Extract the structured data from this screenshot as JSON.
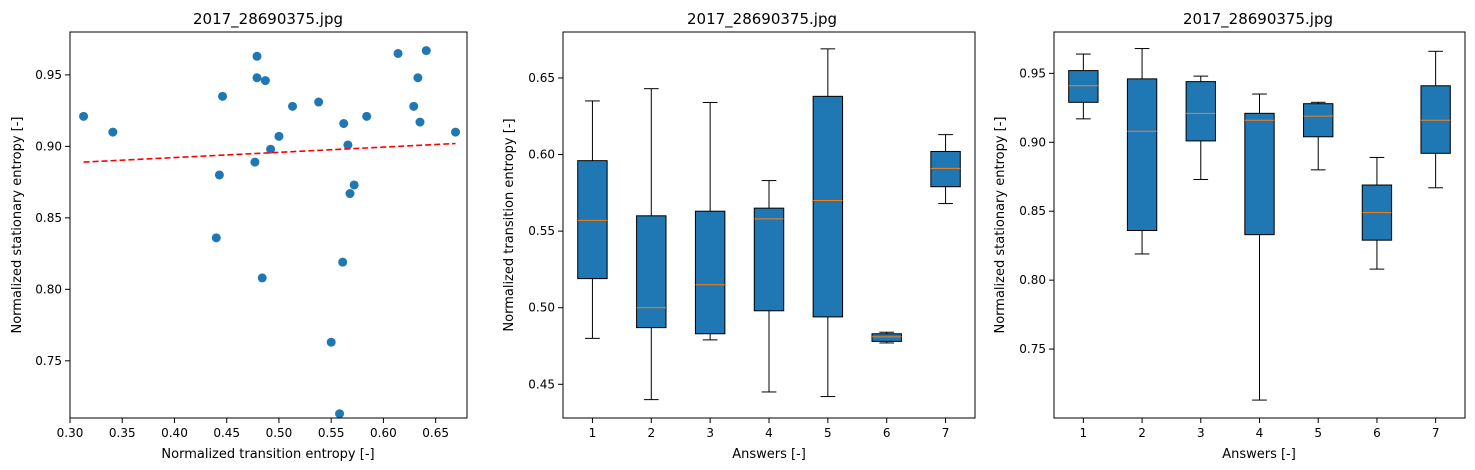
{
  "chart_data": [
    {
      "type": "scatter",
      "title": "2017_28690375.jpg",
      "xlabel": "Normalized transition entropy [-]",
      "ylabel": "Normalized stationary entropy [-]",
      "xlim": [
        0.3,
        0.68
      ],
      "ylim": [
        0.71,
        0.98
      ],
      "xticks": [
        "0.30",
        "0.35",
        "0.40",
        "0.45",
        "0.50",
        "0.55",
        "0.60",
        "0.65"
      ],
      "yticks": [
        "0.75",
        "0.80",
        "0.85",
        "0.90",
        "0.95"
      ],
      "point_color": "#1f77b4",
      "points": [
        {
          "x": 0.313,
          "y": 0.921
        },
        {
          "x": 0.341,
          "y": 0.91
        },
        {
          "x": 0.44,
          "y": 0.836
        },
        {
          "x": 0.443,
          "y": 0.88
        },
        {
          "x": 0.446,
          "y": 0.935
        },
        {
          "x": 0.477,
          "y": 0.889
        },
        {
          "x": 0.479,
          "y": 0.963
        },
        {
          "x": 0.479,
          "y": 0.948
        },
        {
          "x": 0.484,
          "y": 0.808
        },
        {
          "x": 0.487,
          "y": 0.946
        },
        {
          "x": 0.492,
          "y": 0.898
        },
        {
          "x": 0.5,
          "y": 0.907
        },
        {
          "x": 0.513,
          "y": 0.928
        },
        {
          "x": 0.538,
          "y": 0.931
        },
        {
          "x": 0.55,
          "y": 0.763
        },
        {
          "x": 0.558,
          "y": 0.713
        },
        {
          "x": 0.561,
          "y": 0.819
        },
        {
          "x": 0.562,
          "y": 0.916
        },
        {
          "x": 0.566,
          "y": 0.901
        },
        {
          "x": 0.568,
          "y": 0.867
        },
        {
          "x": 0.572,
          "y": 0.873
        },
        {
          "x": 0.584,
          "y": 0.921
        },
        {
          "x": 0.614,
          "y": 0.965
        },
        {
          "x": 0.629,
          "y": 0.928
        },
        {
          "x": 0.633,
          "y": 0.948
        },
        {
          "x": 0.635,
          "y": 0.917
        },
        {
          "x": 0.641,
          "y": 0.967
        },
        {
          "x": 0.669,
          "y": 0.91
        }
      ],
      "trendline": {
        "x": [
          0.313,
          0.669
        ],
        "y": [
          0.889,
          0.902
        ],
        "color": "#ff0000",
        "style": "dashed"
      }
    },
    {
      "type": "box",
      "title": "2017_28690375.jpg",
      "xlabel": "Answers [-]",
      "ylabel": "Normalized transition entropy [-]",
      "ylim": [
        0.428,
        0.68
      ],
      "yticks": [
        "0.45",
        "0.50",
        "0.55",
        "0.60",
        "0.65"
      ],
      "categories": [
        "1",
        "2",
        "3",
        "4",
        "5",
        "6",
        "7"
      ],
      "box_color": "#1f77b4",
      "median_color": "#ff7f0e",
      "boxes": [
        {
          "whislo": 0.48,
          "q1": 0.519,
          "med": 0.557,
          "q3": 0.596,
          "whishi": 0.635
        },
        {
          "whislo": 0.44,
          "q1": 0.487,
          "med": 0.5,
          "q3": 0.56,
          "whishi": 0.643
        },
        {
          "whislo": 0.479,
          "q1": 0.483,
          "med": 0.515,
          "q3": 0.563,
          "whishi": 0.634
        },
        {
          "whislo": 0.445,
          "q1": 0.498,
          "med": 0.558,
          "q3": 0.565,
          "whishi": 0.583
        },
        {
          "whislo": 0.442,
          "q1": 0.494,
          "med": 0.57,
          "q3": 0.638,
          "whishi": 0.669
        },
        {
          "whislo": 0.477,
          "q1": 0.478,
          "med": 0.481,
          "q3": 0.483,
          "whishi": 0.484
        },
        {
          "whislo": 0.568,
          "q1": 0.579,
          "med": 0.591,
          "q3": 0.602,
          "whishi": 0.613
        }
      ]
    },
    {
      "type": "box",
      "title": "2017_28690375.jpg",
      "xlabel": "Answers [-]",
      "ylabel": "Normalized stationary entropy [-]",
      "ylim": [
        0.7,
        0.98
      ],
      "yticks": [
        "0.75",
        "0.80",
        "0.85",
        "0.90",
        "0.95"
      ],
      "categories": [
        "1",
        "2",
        "3",
        "4",
        "5",
        "6",
        "7"
      ],
      "box_color": "#1f77b4",
      "median_color": "#ff7f0e",
      "boxes": [
        {
          "whislo": 0.917,
          "q1": 0.929,
          "med": 0.941,
          "q3": 0.952,
          "whishi": 0.964
        },
        {
          "whislo": 0.819,
          "q1": 0.836,
          "med": 0.908,
          "q3": 0.946,
          "whishi": 0.968
        },
        {
          "whislo": 0.873,
          "q1": 0.901,
          "med": 0.921,
          "q3": 0.944,
          "whishi": 0.948
        },
        {
          "whislo": 0.713,
          "q1": 0.833,
          "med": 0.916,
          "q3": 0.921,
          "whishi": 0.935
        },
        {
          "whislo": 0.88,
          "q1": 0.904,
          "med": 0.919,
          "q3": 0.928,
          "whishi": 0.929
        },
        {
          "whislo": 0.808,
          "q1": 0.829,
          "med": 0.849,
          "q3": 0.869,
          "whishi": 0.889
        },
        {
          "whislo": 0.867,
          "q1": 0.892,
          "med": 0.916,
          "q3": 0.941,
          "whishi": 0.966
        }
      ]
    }
  ]
}
